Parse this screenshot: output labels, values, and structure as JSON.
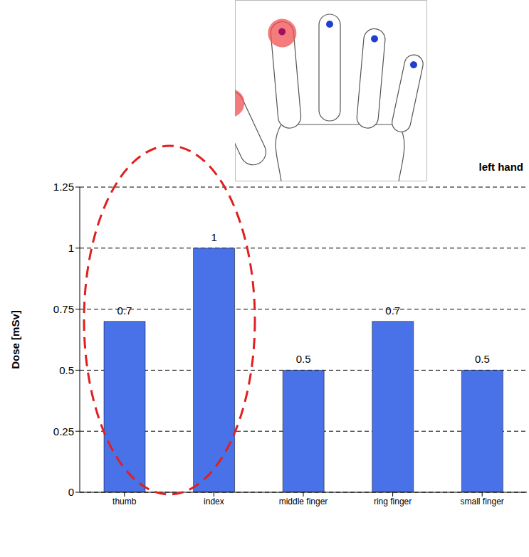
{
  "chart_data": {
    "type": "bar",
    "title": "left hand",
    "ylabel": "Dose [mSv]",
    "categories": [
      "thumb",
      "index",
      "middle finger",
      "ring finger",
      "small finger"
    ],
    "values": [
      0.7,
      1,
      0.5,
      0.7,
      0.5
    ],
    "color": "#4a72e8",
    "ylim": [
      0,
      1.25
    ],
    "yticks": [
      0,
      0.25,
      0.5,
      0.75,
      1,
      1.25
    ],
    "grid": true,
    "data_labels": true
  }
}
